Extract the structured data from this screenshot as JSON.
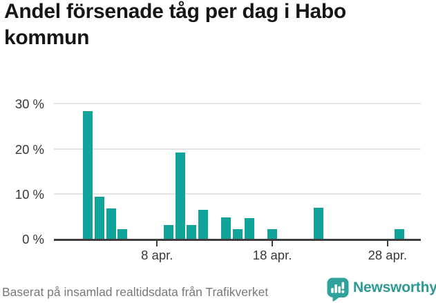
{
  "title": "Andel försenade tåg per dag i Habo kommun",
  "source_note": "Baserat på insamlad realtidsdata från Trafikverket",
  "brand": {
    "name": "Newsworthy",
    "color": "#2d9a94"
  },
  "colors": {
    "bar": "#11a29a",
    "grid": "#e4e4e4",
    "axis": "#3e3e3e",
    "tick_text": "#383838",
    "muted_text": "#787878"
  },
  "chart_data": {
    "type": "bar",
    "title": "Andel försenade tåg per dag i Habo kommun",
    "xlabel": "",
    "ylabel": "",
    "unit": "%",
    "ylim": [
      0,
      30
    ],
    "grid": true,
    "legend": false,
    "y_ticks": [
      {
        "label": "0 %",
        "value": 0
      },
      {
        "label": "10 %",
        "value": 10
      },
      {
        "label": "20 %",
        "value": 20
      },
      {
        "label": "30 %",
        "value": 30
      }
    ],
    "x_ticks": [
      {
        "label": "8 apr.",
        "day": 8
      },
      {
        "label": "18 apr.",
        "day": 18
      },
      {
        "label": "28 apr.",
        "day": 28
      }
    ],
    "points": [
      {
        "date": "2 apr.",
        "day": 2,
        "value": 28.4
      },
      {
        "date": "3 apr.",
        "day": 3,
        "value": 9.4
      },
      {
        "date": "4 apr.",
        "day": 4,
        "value": 6.8
      },
      {
        "date": "5 apr.",
        "day": 5,
        "value": 2.2
      },
      {
        "date": "9 apr.",
        "day": 9,
        "value": 3.1
      },
      {
        "date": "10 apr.",
        "day": 10,
        "value": 19.2
      },
      {
        "date": "11 apr.",
        "day": 11,
        "value": 3.1
      },
      {
        "date": "12 apr.",
        "day": 12,
        "value": 6.4
      },
      {
        "date": "14 apr.",
        "day": 14,
        "value": 4.8
      },
      {
        "date": "15 apr.",
        "day": 15,
        "value": 2.2
      },
      {
        "date": "16 apr.",
        "day": 16,
        "value": 4.6
      },
      {
        "date": "18 apr.",
        "day": 18,
        "value": 2.2
      },
      {
        "date": "22 apr.",
        "day": 22,
        "value": 6.9
      },
      {
        "date": "29 apr.",
        "day": 29,
        "value": 2.2
      }
    ]
  }
}
